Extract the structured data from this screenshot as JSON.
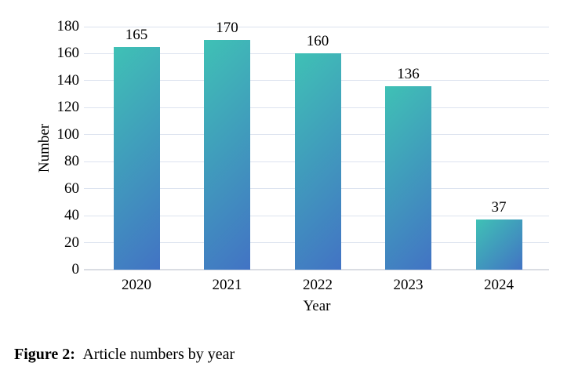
{
  "figure": {
    "caption_label": "Figure 2:",
    "caption_text": "Article numbers by year"
  },
  "chart_data": {
    "type": "bar",
    "title": "",
    "categories": [
      "2020",
      "2021",
      "2022",
      "2023",
      "2024"
    ],
    "values": [
      165,
      170,
      160,
      136,
      37
    ],
    "value_labels_shown": true,
    "xlabel": "Year",
    "ylabel": "Number",
    "ylim": [
      0,
      180
    ],
    "ytick_step": 20,
    "yticks": [
      0,
      20,
      40,
      60,
      80,
      100,
      120,
      140,
      160,
      180
    ],
    "grid": "horizontal-only",
    "legend_position": "none",
    "colors": {
      "bar_gradient_top_left": "#3FC1B5",
      "bar_gradient_bottom_right": "#4273C4",
      "gridline": "#DCE3EF",
      "axis_line": "#DADDE3",
      "text": "#000000"
    }
  }
}
